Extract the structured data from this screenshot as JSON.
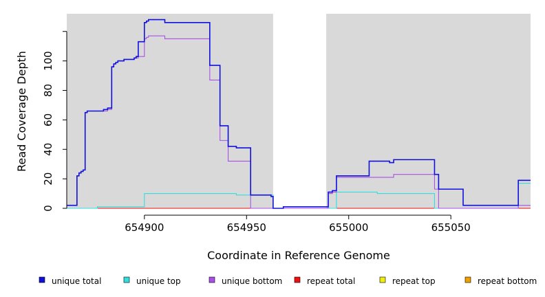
{
  "chart_data": {
    "type": "line",
    "xlabel": "Coordinate in Reference Genome",
    "ylabel": "Read Coverage Depth",
    "xlim": [
      654862,
      655089
    ],
    "ylim": [
      0,
      132
    ],
    "x_ticks": [
      654900,
      654950,
      655000,
      655050
    ],
    "y_ticks": [
      0,
      20,
      40,
      60,
      80,
      100,
      120
    ],
    "y_tick_labels": [
      "0",
      "20",
      "40",
      "60",
      "80",
      "100",
      ""
    ],
    "plot_background": "#d9d9d9",
    "gap_region": [
      654963,
      654989
    ],
    "gap_color": "#ffffff",
    "legend_position": "bottom",
    "series": [
      {
        "name": "unique total",
        "color": "#1010dd",
        "x": [
          654862,
          654867,
          654868,
          654869,
          654870,
          654871,
          654872,
          654880,
          654882,
          654884,
          654885,
          654886,
          654887,
          654890,
          654895,
          654896,
          654897,
          654900,
          654901,
          654902,
          654904,
          654910,
          654932,
          654937,
          654941,
          654945,
          654952,
          654962,
          654963,
          654964,
          654968,
          654988,
          654990,
          654992,
          654994,
          655010,
          655020,
          655022,
          655042,
          655044,
          655056,
          655083,
          655089
        ],
        "y": [
          2,
          22,
          24,
          25,
          26,
          65,
          66,
          67,
          68,
          96,
          98,
          99,
          100,
          101,
          102,
          103,
          113,
          126,
          127,
          128,
          128,
          126,
          97,
          56,
          42,
          41,
          9,
          8,
          0,
          0,
          1,
          1,
          11,
          12,
          22,
          32,
          31,
          33,
          23,
          13,
          2,
          19,
          19
        ]
      },
      {
        "name": "unique top",
        "color": "#33dddd",
        "x": [
          654862,
          654872,
          654877,
          654885,
          654897,
          654900,
          654945,
          654952,
          654963,
          654990,
          654994,
          655010,
          655014,
          655042,
          655044,
          655083,
          655089
        ],
        "y": [
          0,
          0,
          1,
          1,
          1,
          10,
          9,
          9,
          0,
          0,
          11,
          11,
          10,
          0,
          0,
          17,
          17
        ]
      },
      {
        "name": "unique bottom",
        "color": "#a850e8",
        "x": [
          654862,
          654867,
          654868,
          654869,
          654870,
          654871,
          654872,
          654880,
          654882,
          654884,
          654885,
          654886,
          654887,
          654890,
          654895,
          654896,
          654897,
          654900,
          654901,
          654902,
          654904,
          654910,
          654932,
          654937,
          654941,
          654945,
          654952,
          654963,
          654989,
          654990,
          654992,
          654994,
          655020,
          655022,
          655042,
          655044,
          655083,
          655089
        ],
        "y": [
          2,
          22,
          24,
          25,
          26,
          65,
          66,
          66,
          67,
          96,
          98,
          99,
          100,
          101,
          102,
          102,
          103,
          115,
          116,
          117,
          117,
          115,
          87,
          46,
          32,
          32,
          0,
          0,
          0,
          10,
          11,
          21,
          21,
          23,
          13,
          0,
          2,
          2
        ]
      },
      {
        "name": "repeat total",
        "color": "#ee1111",
        "x": [
          654862,
          655089
        ],
        "y": [
          0,
          0
        ]
      },
      {
        "name": "repeat top",
        "color": "#eeee11",
        "x": [
          654862,
          655089
        ],
        "y": [
          0,
          0
        ]
      },
      {
        "name": "repeat bottom",
        "color": "#f0a000",
        "x": [
          654862,
          655089
        ],
        "y": [
          0,
          0
        ]
      }
    ]
  }
}
